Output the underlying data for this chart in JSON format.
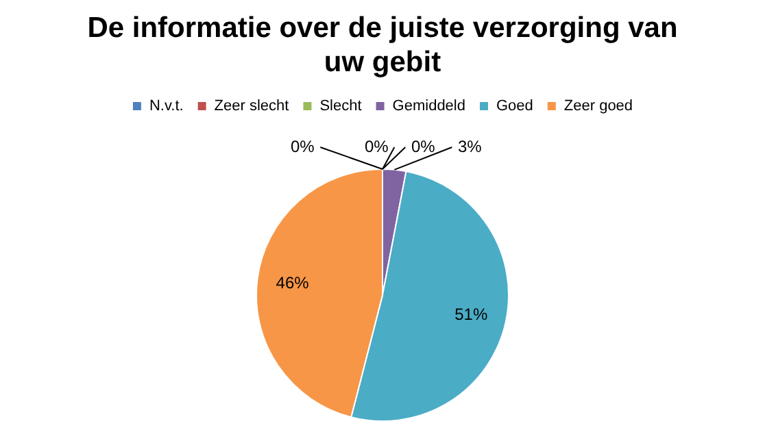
{
  "chart_data": {
    "type": "pie",
    "title": "De informatie over de juiste verzorging van uw gebit",
    "categories": [
      "N.v.t.",
      "Zeer slecht",
      "Slecht",
      "Gemiddeld",
      "Goed",
      "Zeer goed"
    ],
    "values": [
      0,
      0,
      0,
      3,
      51,
      46
    ],
    "colors": [
      "#4f81bd",
      "#c0504d",
      "#9bbb59",
      "#8064a2",
      "#4bacc6",
      "#f79646"
    ],
    "value_labels": [
      "0%",
      "0%",
      "0%",
      "3%",
      "51%",
      "46%"
    ],
    "legend": "top"
  }
}
